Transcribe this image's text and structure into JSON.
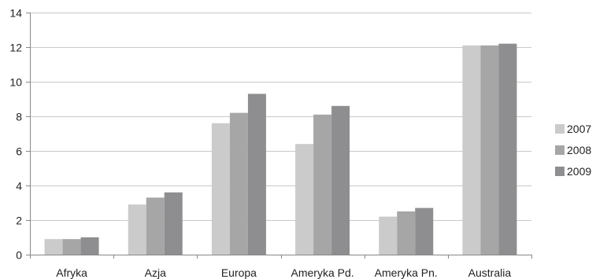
{
  "chart_data": {
    "type": "bar",
    "title": "",
    "xlabel": "",
    "ylabel": "",
    "categories": [
      "Afryka",
      "Azja",
      "Europa",
      "Ameryka Pd.",
      "Ameryka Pn.",
      "Australia"
    ],
    "series": [
      {
        "name": "2007",
        "values": [
          0.9,
          2.9,
          7.6,
          6.4,
          2.2,
          12.1
        ],
        "color": "#cbcbcb"
      },
      {
        "name": "2008",
        "values": [
          0.9,
          3.3,
          8.2,
          8.1,
          2.5,
          12.1
        ],
        "color": "#a6a6a6"
      },
      {
        "name": "2009",
        "values": [
          1.0,
          3.6,
          9.3,
          8.6,
          2.7,
          12.2
        ],
        "color": "#8e8e90"
      }
    ],
    "ylim": [
      0,
      14
    ],
    "yticks": [
      0,
      2,
      4,
      6,
      8,
      10,
      12,
      14
    ],
    "grid": true,
    "legend_position": "right"
  }
}
